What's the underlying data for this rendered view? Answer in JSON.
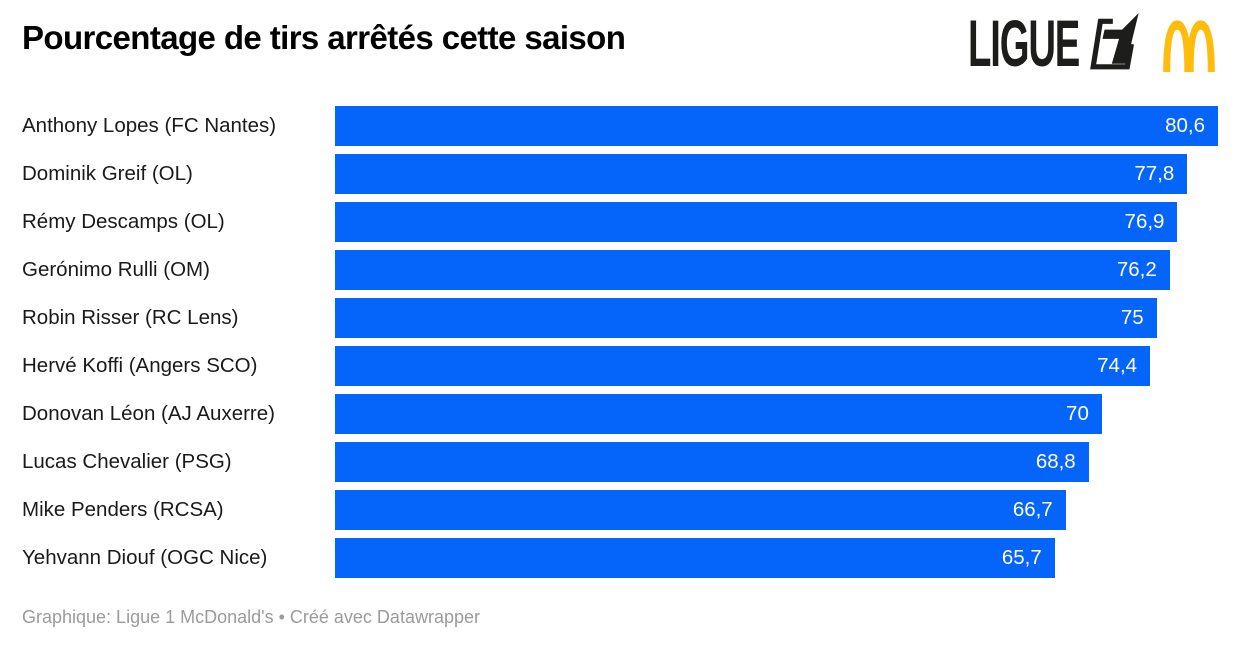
{
  "logo": {
    "wordmark": "LIGUE",
    "one_badge": "ligue1-number-one-emblem",
    "arches": "mcdonalds-golden-arches"
  },
  "colors": {
    "bar": "#0564fa",
    "ink": "#1d1d1b",
    "gold": "#ffbc0d",
    "label_text": "#1a1a1a",
    "value_text": "#ffffff",
    "footer_text": "#9b9b9b"
  },
  "chart_data": {
    "type": "bar",
    "orientation": "horizontal",
    "title": "Pourcentage de tirs arrêtés cette saison",
    "xlabel": "",
    "ylabel": "",
    "xlim": [
      0,
      80.6
    ],
    "grid": false,
    "legend": false,
    "categories": [
      "Anthony Lopes (FC Nantes)",
      "Dominik Greif (OL)",
      "Rémy Descamps (OL)",
      "Gerónimo Rulli (OM)",
      "Robin Risser (RC Lens)",
      "Hervé Koffi (Angers SCO)",
      "Donovan Léon (AJ Auxerre)",
      "Lucas Chevalier (PSG)",
      "Mike Penders (RCSA)",
      "Yehvann Diouf (OGC Nice)"
    ],
    "values": [
      80.6,
      77.8,
      76.9,
      76.2,
      75,
      74.4,
      70,
      68.8,
      66.7,
      65.7
    ],
    "value_labels": [
      "80,6",
      "77,8",
      "76,9",
      "76,2",
      "75",
      "74,4",
      "70",
      "68,8",
      "66,7",
      "65,7"
    ]
  },
  "footer": {
    "text": "Graphique: Ligue 1 McDonald's • Créé avec Datawrapper"
  }
}
